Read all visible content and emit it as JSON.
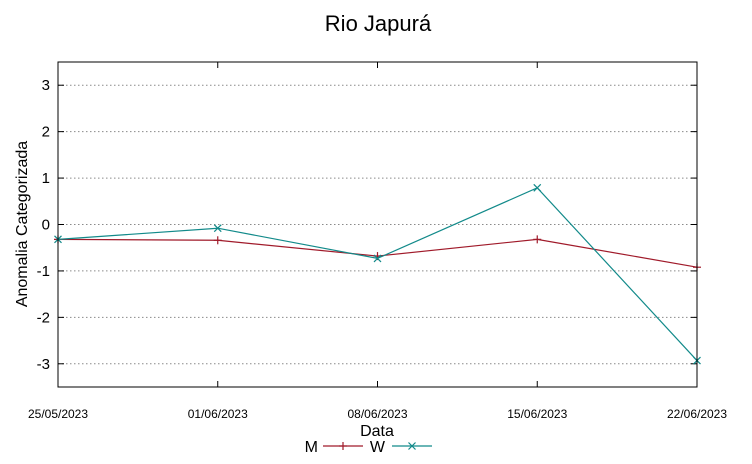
{
  "chart_data": {
    "type": "line",
    "title": "Rio Japurá",
    "xlabel": "Data",
    "ylabel": "Anomalia Categorizada",
    "categories": [
      "25/05/2023",
      "01/06/2023",
      "08/06/2023",
      "15/06/2023",
      "22/06/2023"
    ],
    "yticks": [
      "3",
      "2",
      "1",
      "0",
      "-1",
      "-2",
      "-3"
    ],
    "ytick_values": [
      3,
      2,
      1,
      0,
      -1,
      -2,
      -3
    ],
    "ylim": [
      -3.5,
      3.5
    ],
    "grid": "horizontal dotted",
    "legend_position": "bottom-center",
    "series": [
      {
        "name": "M",
        "color": "#a01a2a",
        "marker": "plus",
        "values": [
          -0.32,
          -0.34,
          -0.68,
          -0.32,
          -0.92
        ]
      },
      {
        "name": "W",
        "color": "#128a8a",
        "marker": "cross",
        "values": [
          -0.32,
          -0.08,
          -0.73,
          0.79,
          -2.93
        ]
      }
    ]
  }
}
